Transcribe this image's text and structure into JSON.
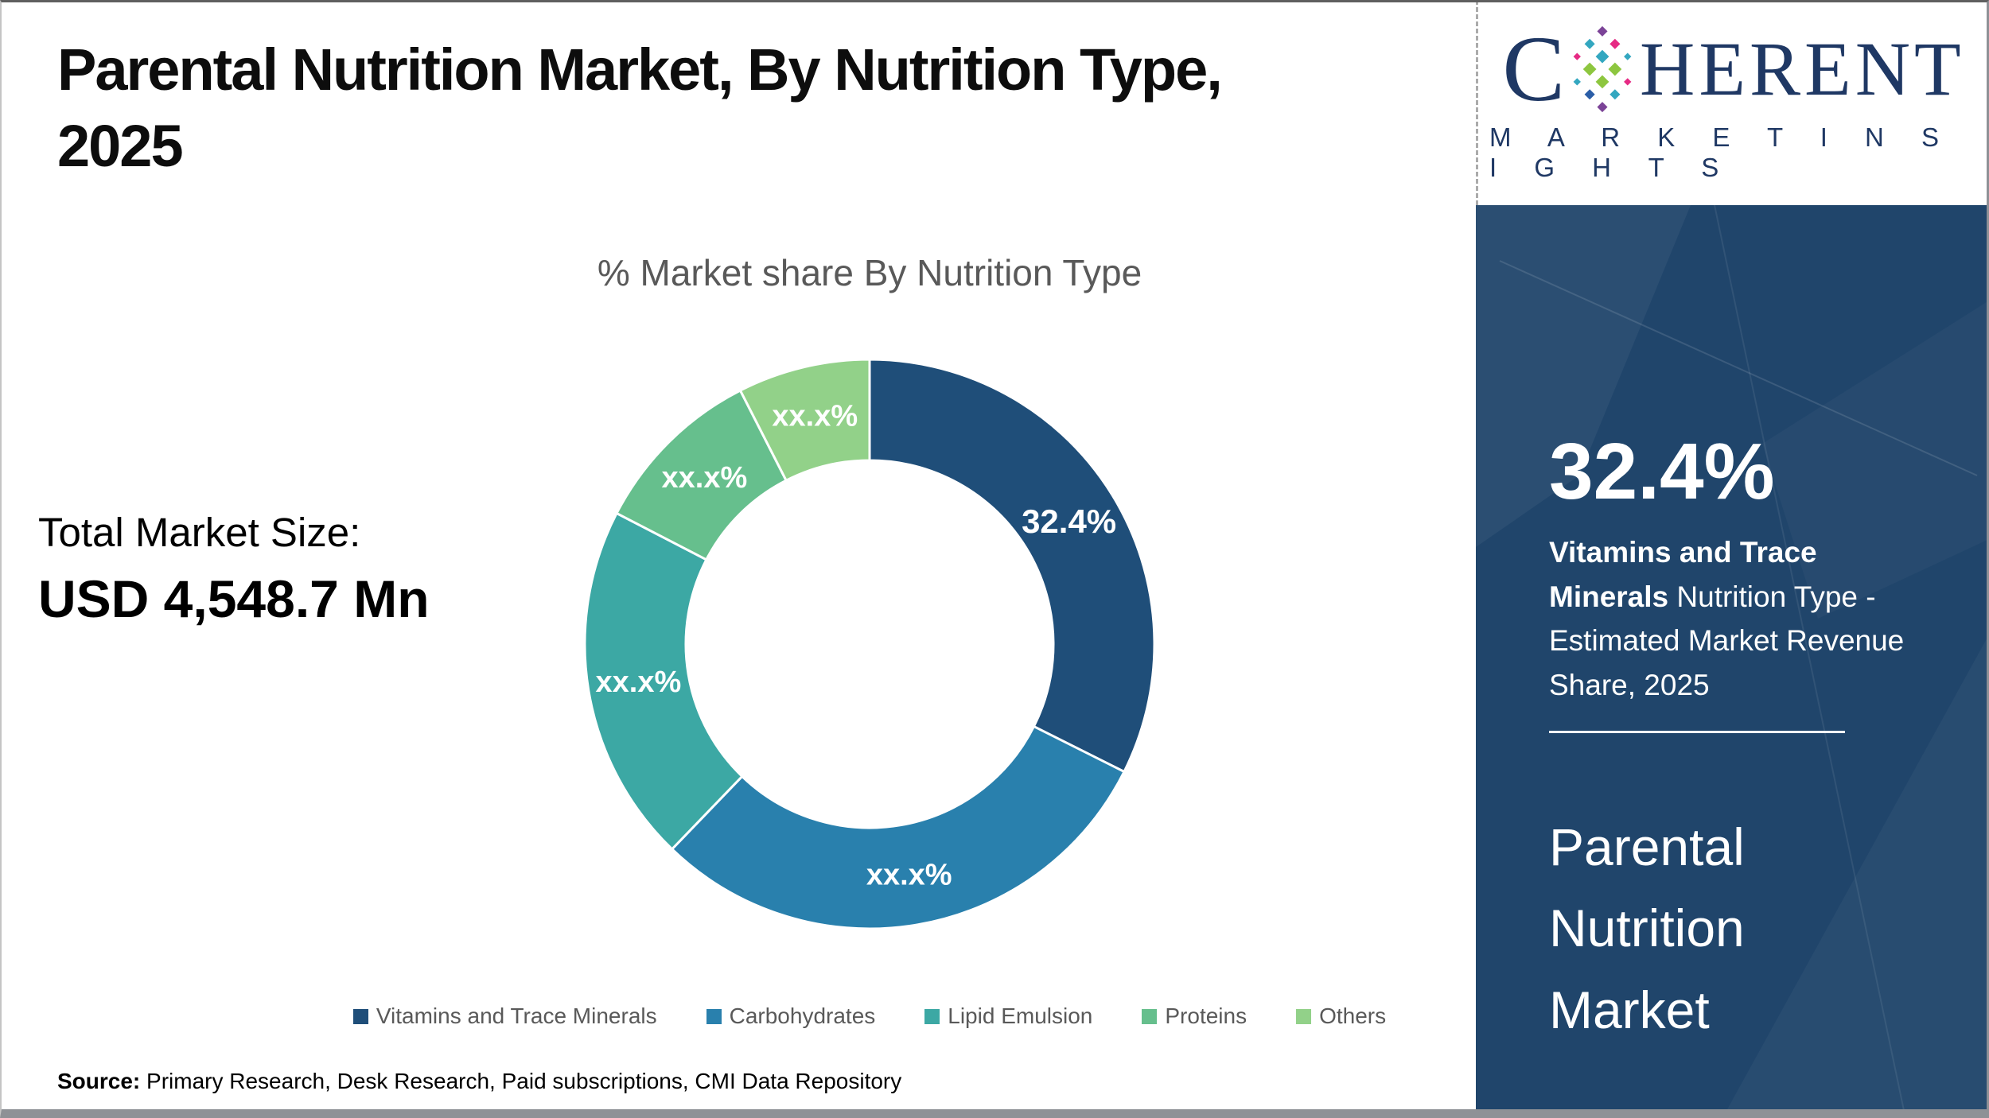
{
  "header": {
    "title_line1": "Parental Nutrition Market, By Nutrition Type,",
    "title_line2": "2025"
  },
  "chart": {
    "title": "% Market share By Nutrition Type"
  },
  "chart_data": {
    "type": "pie",
    "subtype": "donut",
    "title": "% Market share By Nutrition Type",
    "categories": [
      "Vitamins and Trace Minerals",
      "Carbohydrates",
      "Lipid Emulsion",
      "Proteins",
      "Others"
    ],
    "values": [
      32.4,
      29.8,
      20.4,
      9.9,
      7.5
    ],
    "displayed_labels": [
      "32.4%",
      "xx.x%",
      "xx.x%",
      "xx.x%",
      "xx.x%"
    ],
    "colors": [
      "#1F4E79",
      "#2980AD",
      "#3CA8A4",
      "#66BF8D",
      "#92D189"
    ],
    "start_angle_deg": 0,
    "direction": "clockwise",
    "inner_radius_ratio": 0.645,
    "legend_position": "bottom",
    "label_color": "#ffffff"
  },
  "total_market": {
    "label": "Total Market Size:",
    "value": "USD 4,548.7 Mn"
  },
  "source": {
    "label": "Source:",
    "text": " Primary Research, Desk Research, Paid subscriptions, CMI Data Repository"
  },
  "logo": {
    "c": "C",
    "rest": "HERENT",
    "sub": "M A R K E T   I N S I G H T S",
    "brand_navy": "#1F3864",
    "o_colors": [
      "#7B4397",
      "#E62A84",
      "#33A7C0",
      "#8DC63F",
      "#2B5EA7"
    ]
  },
  "sidebar": {
    "stat_value": "32.4%",
    "highlight_bold": "Vitamins and Trace Minerals",
    "highlight_rest": " Nutrition Type - Estimated Market Revenue Share, 2025",
    "product_name": "Parental Nutrition Market",
    "panel_color": "#20456B"
  }
}
